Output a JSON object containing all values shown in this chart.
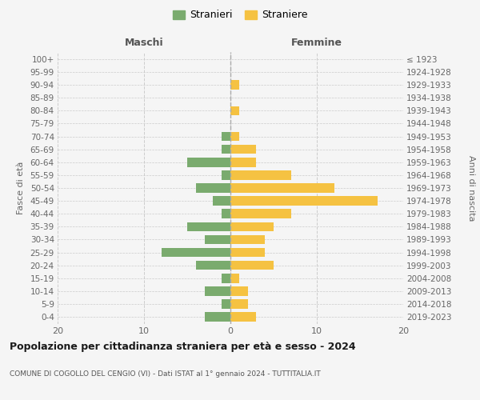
{
  "age_groups": [
    "0-4",
    "5-9",
    "10-14",
    "15-19",
    "20-24",
    "25-29",
    "30-34",
    "35-39",
    "40-44",
    "45-49",
    "50-54",
    "55-59",
    "60-64",
    "65-69",
    "70-74",
    "75-79",
    "80-84",
    "85-89",
    "90-94",
    "95-99",
    "100+"
  ],
  "birth_years": [
    "2019-2023",
    "2014-2018",
    "2009-2013",
    "2004-2008",
    "1999-2003",
    "1994-1998",
    "1989-1993",
    "1984-1988",
    "1979-1983",
    "1974-1978",
    "1969-1973",
    "1964-1968",
    "1959-1963",
    "1954-1958",
    "1949-1953",
    "1944-1948",
    "1939-1943",
    "1934-1938",
    "1929-1933",
    "1924-1928",
    "≤ 1923"
  ],
  "maschi": [
    3,
    1,
    3,
    1,
    4,
    8,
    3,
    5,
    1,
    2,
    4,
    1,
    5,
    1,
    1,
    0,
    0,
    0,
    0,
    0,
    0
  ],
  "femmine": [
    3,
    2,
    2,
    1,
    5,
    4,
    4,
    5,
    7,
    17,
    12,
    7,
    3,
    3,
    1,
    0,
    1,
    0,
    1,
    0,
    0
  ],
  "color_maschi": "#7aab6e",
  "color_femmine": "#f5c242",
  "bg_color": "#f5f5f5",
  "title": "Popolazione per cittadinanza straniera per età e sesso - 2024",
  "subtitle": "COMUNE DI COGOLLO DEL CENGIO (VI) - Dati ISTAT al 1° gennaio 2024 - TUTTITALIA.IT",
  "label_maschi": "Maschi",
  "label_femmine": "Femmine",
  "ylabel_left": "Fasce di età",
  "ylabel_right": "Anni di nascita",
  "legend_maschi": "Stranieri",
  "legend_femmine": "Straniere",
  "xlim": 20
}
